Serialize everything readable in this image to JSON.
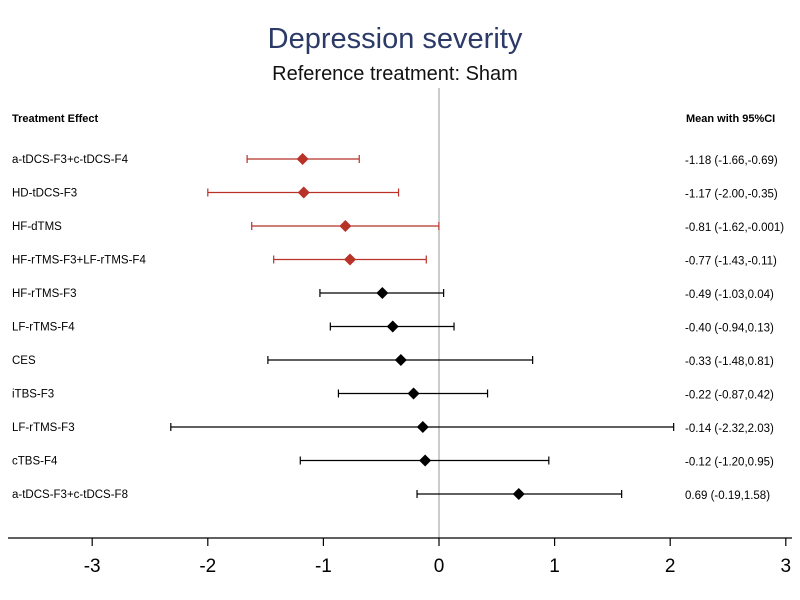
{
  "chart_data": {
    "type": "forest",
    "title": "Depression severity",
    "subtitle": "Reference treatment: Sham",
    "left_header": "Treatment Effect",
    "right_header": "Mean with 95%CI",
    "xlim": [
      -3.5,
      3.0
    ],
    "xticks": [
      -3,
      -2,
      -1,
      0,
      1,
      2,
      3
    ],
    "reference_line": 0,
    "significant_color": "#b83228",
    "nonsignificant_color": "#000000",
    "rows": [
      {
        "name": "a-tDCS-F3+c-tDCS-F4",
        "mean": -1.18,
        "lo": -1.66,
        "hi": -0.69,
        "label": "-1.18 (-1.66,-0.69)",
        "significant": true
      },
      {
        "name": "HD-tDCS-F3",
        "mean": -1.17,
        "lo": -2.0,
        "hi": -0.35,
        "label": "-1.17 (-2.00,-0.35)",
        "significant": true
      },
      {
        "name": "HF-dTMS",
        "mean": -0.81,
        "lo": -1.62,
        "hi": -0.001,
        "label": "-0.81 (-1.62,-0.001)",
        "significant": true
      },
      {
        "name": "HF-rTMS-F3+LF-rTMS-F4",
        "mean": -0.77,
        "lo": -1.43,
        "hi": -0.11,
        "label": "-0.77 (-1.43,-0.11)",
        "significant": true
      },
      {
        "name": "HF-rTMS-F3",
        "mean": -0.49,
        "lo": -1.03,
        "hi": 0.04,
        "label": "-0.49 (-1.03,0.04)",
        "significant": false
      },
      {
        "name": "LF-rTMS-F4",
        "mean": -0.4,
        "lo": -0.94,
        "hi": 0.13,
        "label": "-0.40 (-0.94,0.13)",
        "significant": false
      },
      {
        "name": "CES",
        "mean": -0.33,
        "lo": -1.48,
        "hi": 0.81,
        "label": "-0.33 (-1.48,0.81)",
        "significant": false
      },
      {
        "name": "iTBS-F3",
        "mean": -0.22,
        "lo": -0.87,
        "hi": 0.42,
        "label": "-0.22 (-0.87,0.42)",
        "significant": false
      },
      {
        "name": "LF-rTMS-F3",
        "mean": -0.14,
        "lo": -2.32,
        "hi": 2.03,
        "label": "-0.14 (-2.32,2.03)",
        "significant": false
      },
      {
        "name": "cTBS-F4",
        "mean": -0.12,
        "lo": -1.2,
        "hi": 0.95,
        "label": "-0.12 (-1.20,0.95)",
        "significant": false
      },
      {
        "name": "a-tDCS-F3+c-tDCS-F8",
        "mean": 0.69,
        "lo": -0.19,
        "hi": 1.58,
        "label": "0.69 (-0.19,1.58)",
        "significant": false
      }
    ]
  }
}
